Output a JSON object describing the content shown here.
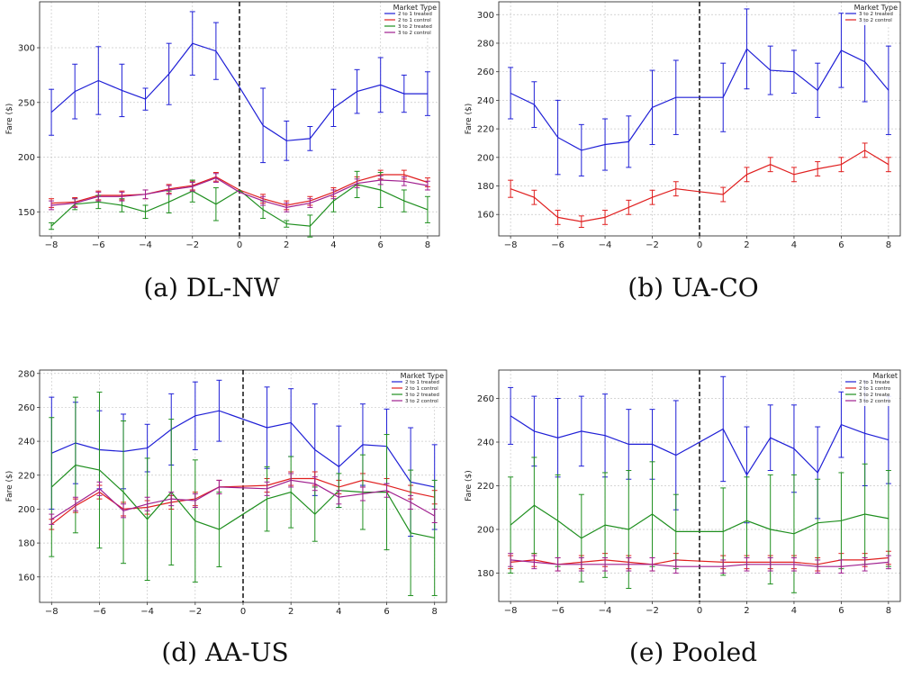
{
  "chart_data": [
    {
      "type": "line",
      "caption": "(a) DL-NW",
      "ylabel": "Fare ($)",
      "xlim": [
        -8.5,
        8.5
      ],
      "ylim": [
        128,
        342
      ],
      "xticks": [
        -8,
        -6,
        -4,
        -2,
        0,
        2,
        4,
        6,
        8
      ],
      "yticks": [
        150,
        200,
        250,
        300
      ],
      "grid": true,
      "vline_x": 0,
      "legend": {
        "title": "Market Type",
        "placement": "top-right"
      },
      "x": [
        -8,
        -7,
        -6,
        -5,
        -4,
        -3,
        -2,
        -1,
        0,
        1,
        2,
        3,
        4,
        5,
        6,
        7,
        8
      ],
      "series": [
        {
          "name": "2 to 1 treated",
          "color": "#1f1fd6",
          "values": [
            241,
            260,
            270,
            261,
            253,
            276,
            304,
            297,
            264,
            229,
            215,
            217,
            245,
            260,
            266,
            258,
            258
          ],
          "err": [
            21,
            25,
            31,
            24,
            10,
            28,
            29,
            26,
            0,
            34,
            18,
            11,
            17,
            20,
            25,
            17,
            20
          ]
        },
        {
          "name": "2 to 1 control",
          "color": "#e01f1f",
          "values": [
            158,
            159,
            165,
            165,
            166,
            171,
            174,
            182,
            170,
            162,
            156,
            160,
            168,
            178,
            184,
            184,
            177
          ],
          "err": [
            4,
            4,
            4,
            4,
            4,
            4,
            4,
            4,
            0,
            4,
            4,
            4,
            4,
            4,
            4,
            4,
            4
          ]
        },
        {
          "name": "3 to 2 treated",
          "color": "#1f8f1f",
          "values": [
            137,
            157,
            159,
            156,
            150,
            159,
            169,
            157,
            170,
            152,
            139,
            137,
            160,
            175,
            170,
            160,
            152
          ],
          "err": [
            3,
            5,
            6,
            6,
            6,
            10,
            10,
            15,
            0,
            8,
            3,
            10,
            10,
            12,
            16,
            10,
            12
          ]
        },
        {
          "name": "3 to 2 control",
          "color": "#a01f8f",
          "values": [
            156,
            158,
            164,
            164,
            166,
            170,
            173,
            181,
            168,
            160,
            154,
            158,
            166,
            176,
            179,
            178,
            174
          ],
          "err": [
            4,
            4,
            4,
            4,
            4,
            4,
            4,
            4,
            0,
            4,
            4,
            4,
            4,
            4,
            4,
            4,
            4
          ]
        }
      ]
    },
    {
      "type": "line",
      "caption": "(b) UA-CO",
      "ylabel": "Fare ($)",
      "xlim": [
        -8.5,
        8.5
      ],
      "ylim": [
        145,
        309
      ],
      "xticks": [
        -8,
        -6,
        -4,
        -2,
        0,
        2,
        4,
        6,
        8
      ],
      "yticks": [
        160,
        180,
        200,
        220,
        240,
        260,
        280,
        300
      ],
      "grid": true,
      "vline_x": 0,
      "legend": {
        "title": "Market Type",
        "placement": "top-right"
      },
      "x": [
        -8,
        -7,
        -6,
        -5,
        -4,
        -3,
        -2,
        -1,
        1,
        2,
        3,
        4,
        5,
        6,
        7,
        8
      ],
      "series": [
        {
          "name": "3 to 2 treated",
          "color": "#1f1fd6",
          "values": [
            245,
            237,
            214,
            205,
            209,
            211,
            235,
            242,
            242,
            276,
            261,
            260,
            247,
            275,
            267,
            247
          ],
          "err": [
            18,
            16,
            26,
            18,
            18,
            18,
            26,
            26,
            24,
            28,
            17,
            15,
            19,
            26,
            28,
            31
          ]
        },
        {
          "name": "3 to 2 control",
          "color": "#e01f1f",
          "values": [
            178,
            172,
            158,
            155,
            158,
            165,
            172,
            178,
            174,
            188,
            195,
            188,
            192,
            195,
            205,
            195
          ],
          "err": [
            6,
            5,
            5,
            4,
            5,
            5,
            5,
            5,
            5,
            5,
            5,
            5,
            5,
            5,
            5,
            5
          ]
        }
      ]
    },
    {
      "type": "line",
      "caption": "(d) AA-US",
      "ylabel": "Fare ($)",
      "xlim": [
        -8.5,
        8.5
      ],
      "ylim": [
        145,
        282
      ],
      "xticks": [
        -8,
        -6,
        -4,
        -2,
        0,
        2,
        4,
        6,
        8
      ],
      "yticks": [
        160,
        180,
        200,
        220,
        240,
        260,
        280
      ],
      "grid": true,
      "vline_x": 0,
      "legend": {
        "title": "Market Type",
        "placement": "top-right"
      },
      "x": [
        -8,
        -7,
        -6,
        -5,
        -4,
        -3,
        -2,
        -1,
        1,
        2,
        3,
        4,
        5,
        6,
        7,
        8
      ],
      "series": [
        {
          "name": "2 to 1 treated",
          "color": "#1f1fd6",
          "values": [
            233,
            239,
            235,
            234,
            236,
            247,
            255,
            258,
            248,
            251,
            235,
            225,
            238,
            237,
            216,
            213
          ],
          "err": [
            33,
            24,
            23,
            22,
            14,
            21,
            20,
            18,
            24,
            20,
            27,
            24,
            24,
            22,
            32,
            25
          ]
        },
        {
          "name": "2 to 1 control",
          "color": "#e01f1f",
          "values": [
            191,
            202,
            210,
            200,
            201,
            204,
            206,
            213,
            214,
            218,
            218,
            213,
            217,
            214,
            210,
            207
          ],
          "err": [
            3,
            4,
            4,
            4,
            4,
            4,
            4,
            4,
            4,
            4,
            4,
            4,
            4,
            4,
            4,
            4
          ]
        },
        {
          "name": "3 to 2 treated",
          "color": "#1f8f1f",
          "values": [
            213,
            226,
            223,
            210,
            194,
            210,
            193,
            188,
            206,
            210,
            197,
            211,
            210,
            210,
            186,
            183
          ],
          "err": [
            41,
            40,
            46,
            42,
            36,
            43,
            36,
            22,
            19,
            21,
            16,
            10,
            22,
            34,
            37,
            34
          ]
        },
        {
          "name": "3 to 2 control",
          "color": "#a01f8f",
          "values": [
            194,
            203,
            212,
            199,
            203,
            206,
            205,
            213,
            212,
            217,
            215,
            207,
            209,
            211,
            204,
            196
          ],
          "err": [
            3,
            4,
            4,
            4,
            4,
            4,
            4,
            4,
            4,
            4,
            4,
            4,
            4,
            4,
            4,
            4
          ]
        }
      ]
    },
    {
      "type": "line",
      "caption": "(e) Pooled",
      "ylabel": "Fare ($)",
      "xlim": [
        -8.5,
        8.5
      ],
      "ylim": [
        167,
        273
      ],
      "xticks": [
        -8,
        -6,
        -4,
        -2,
        0,
        2,
        4,
        6,
        8
      ],
      "yticks": [
        180,
        200,
        220,
        240,
        260
      ],
      "grid": true,
      "vline_x": 0,
      "legend": {
        "title": "Market",
        "placement": "top-right"
      },
      "x": [
        -8,
        -7,
        -6,
        -5,
        -4,
        -3,
        -2,
        -1,
        1,
        2,
        3,
        4,
        5,
        6,
        7,
        8
      ],
      "series": [
        {
          "name": "2 to 1 treate",
          "color": "#1f1fd6",
          "values": [
            252,
            245,
            242,
            245,
            243,
            239,
            239,
            234,
            246,
            225,
            242,
            237,
            226,
            248,
            244,
            241
          ],
          "err": [
            13,
            16,
            18,
            16,
            19,
            16,
            16,
            25,
            24,
            22,
            15,
            20,
            21,
            15,
            24,
            20
          ]
        },
        {
          "name": "2 to 1 contro",
          "color": "#e01f1f",
          "values": [
            185,
            186,
            184,
            185,
            186,
            185,
            184,
            186,
            185,
            185,
            185,
            185,
            184,
            186,
            186,
            187
          ],
          "err": [
            3,
            3,
            3,
            3,
            3,
            3,
            3,
            3,
            3,
            3,
            3,
            3,
            3,
            3,
            3,
            3
          ]
        },
        {
          "name": "3 to 2 treate",
          "color": "#1f8f1f",
          "values": [
            202,
            211,
            204,
            196,
            202,
            200,
            207,
            199,
            199,
            204,
            200,
            198,
            203,
            204,
            207,
            205
          ],
          "err": [
            22,
            22,
            21,
            20,
            24,
            27,
            24,
            17,
            20,
            20,
            25,
            27,
            20,
            22,
            23,
            22
          ]
        },
        {
          "name": "3 to 2 contro",
          "color": "#a01f8f",
          "values": [
            186,
            185,
            184,
            184,
            184,
            184,
            184,
            183,
            183,
            184,
            184,
            184,
            183,
            183,
            184,
            185
          ],
          "err": [
            3,
            3,
            3,
            3,
            3,
            3,
            3,
            3,
            3,
            3,
            3,
            3,
            3,
            3,
            3,
            3
          ]
        }
      ]
    }
  ]
}
